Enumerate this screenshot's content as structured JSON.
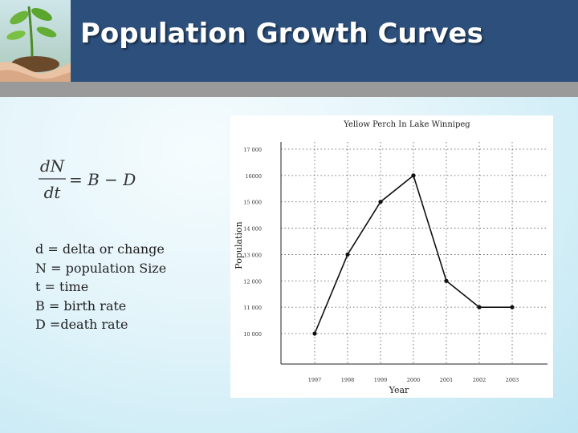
{
  "slide": {
    "title": "Population Growth Curves"
  },
  "equation": {
    "numerator": "dN",
    "denominator": "dt",
    "rhs": "= B − D"
  },
  "definitions": [
    "d = delta or change",
    "N = population Size",
    "t = time",
    "B = birth rate",
    "D =death rate"
  ],
  "chart_data": {
    "type": "line",
    "title": "Yellow Perch In Lake Winnipeg",
    "xlabel": "Year",
    "ylabel": "Population",
    "x": [
      "1997",
      "1998",
      "1999",
      "2000",
      "2001",
      "2002",
      "2003"
    ],
    "series": [
      {
        "values": [
          10000,
          13000,
          15000,
          16000,
          12000,
          11000,
          11000
        ]
      }
    ],
    "yticks": [
      "10 000",
      "11 000",
      "12 000",
      "13 000",
      "14 000",
      "15 000",
      "16000",
      "17 000"
    ],
    "ylim": [
      10000,
      17000
    ],
    "grid": true,
    "legend": "none",
    "line_color": "#111111"
  }
}
